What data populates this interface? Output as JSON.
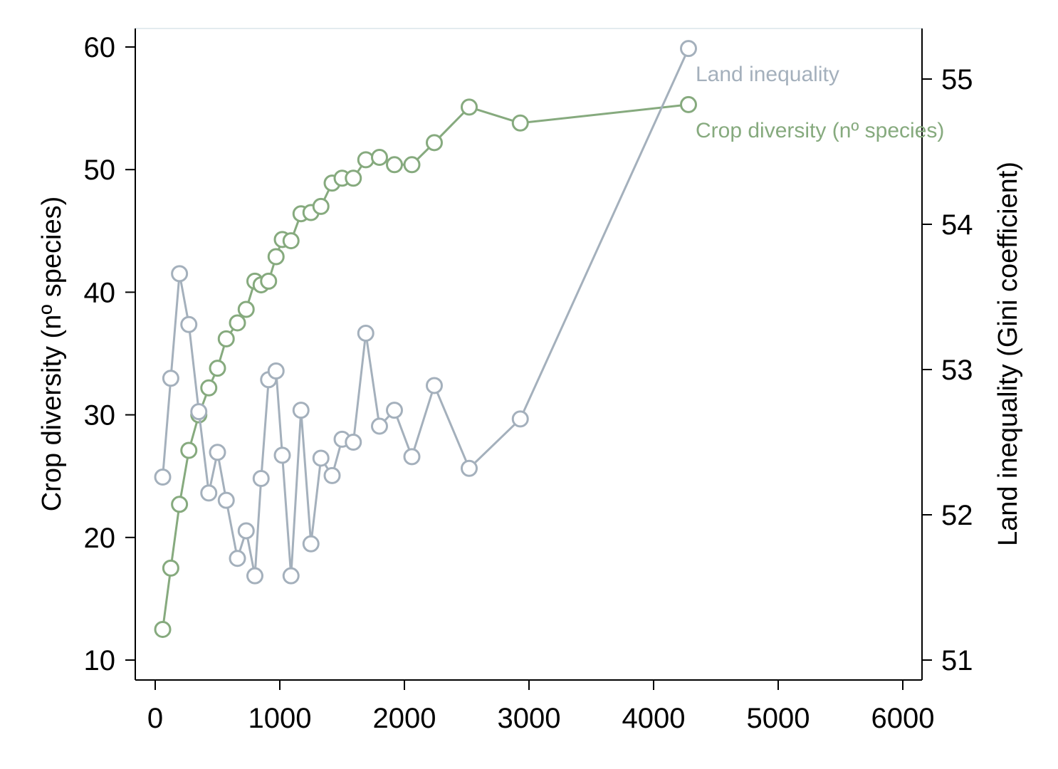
{
  "chart_data": {
    "type": "line",
    "title": "",
    "xlabel": "",
    "xlim": [
      0,
      6000
    ],
    "x_ticks": [
      0,
      1000,
      2000,
      3000,
      4000,
      5000,
      6000
    ],
    "y_left": {
      "label": "Crop diversity (nº species)",
      "ticks": [
        10,
        20,
        30,
        40,
        50,
        60
      ],
      "lim": [
        9.5,
        61.5
      ]
    },
    "y_right": {
      "label": "Land inequality (Gini coefficient)",
      "ticks": [
        51,
        52,
        53,
        54,
        55
      ],
      "lim": [
        50.87,
        55.34
      ]
    },
    "grid": false,
    "legend": "inline-labels",
    "series": [
      {
        "name": "Crop diversity (nº species)",
        "axis": "left",
        "color": "#86aa7e",
        "points": [
          [
            60,
            12.5
          ],
          [
            125,
            17.5
          ],
          [
            195,
            22.7
          ],
          [
            270,
            27.1
          ],
          [
            350,
            30.0
          ],
          [
            430,
            32.2
          ],
          [
            500,
            33.8
          ],
          [
            570,
            36.2
          ],
          [
            660,
            37.5
          ],
          [
            730,
            38.6
          ],
          [
            800,
            40.9
          ],
          [
            850,
            40.6
          ],
          [
            910,
            40.9
          ],
          [
            970,
            42.9
          ],
          [
            1020,
            44.3
          ],
          [
            1090,
            44.2
          ],
          [
            1170,
            46.4
          ],
          [
            1250,
            46.5
          ],
          [
            1330,
            47.0
          ],
          [
            1420,
            48.9
          ],
          [
            1500,
            49.3
          ],
          [
            1590,
            49.3
          ],
          [
            1690,
            50.8
          ],
          [
            1800,
            51.0
          ],
          [
            1920,
            50.4
          ],
          [
            2060,
            50.4
          ],
          [
            2240,
            52.2
          ],
          [
            2520,
            55.1
          ],
          [
            2930,
            53.8
          ],
          [
            4280,
            55.3
          ]
        ],
        "label_text": "Crop diversity (nº species)"
      },
      {
        "name": "Land inequality",
        "axis": "right",
        "color": "#a4b0bc",
        "points": [
          [
            60,
            52.26
          ],
          [
            125,
            52.94
          ],
          [
            195,
            53.66
          ],
          [
            270,
            53.31
          ],
          [
            350,
            52.71
          ],
          [
            430,
            52.15
          ],
          [
            500,
            52.43
          ],
          [
            570,
            52.1
          ],
          [
            660,
            51.7
          ],
          [
            730,
            51.89
          ],
          [
            800,
            51.58
          ],
          [
            850,
            52.25
          ],
          [
            910,
            52.93
          ],
          [
            970,
            52.99
          ],
          [
            1020,
            52.41
          ],
          [
            1090,
            51.58
          ],
          [
            1170,
            52.72
          ],
          [
            1250,
            51.8
          ],
          [
            1330,
            52.39
          ],
          [
            1420,
            52.27
          ],
          [
            1500,
            52.52
          ],
          [
            1590,
            52.5
          ],
          [
            1690,
            53.25
          ],
          [
            1800,
            52.61
          ],
          [
            1920,
            52.72
          ],
          [
            2060,
            52.4
          ],
          [
            2240,
            52.89
          ],
          [
            2520,
            52.32
          ],
          [
            2930,
            52.66
          ],
          [
            4280,
            55.21
          ]
        ],
        "label_text": "Land inequality"
      }
    ]
  }
}
